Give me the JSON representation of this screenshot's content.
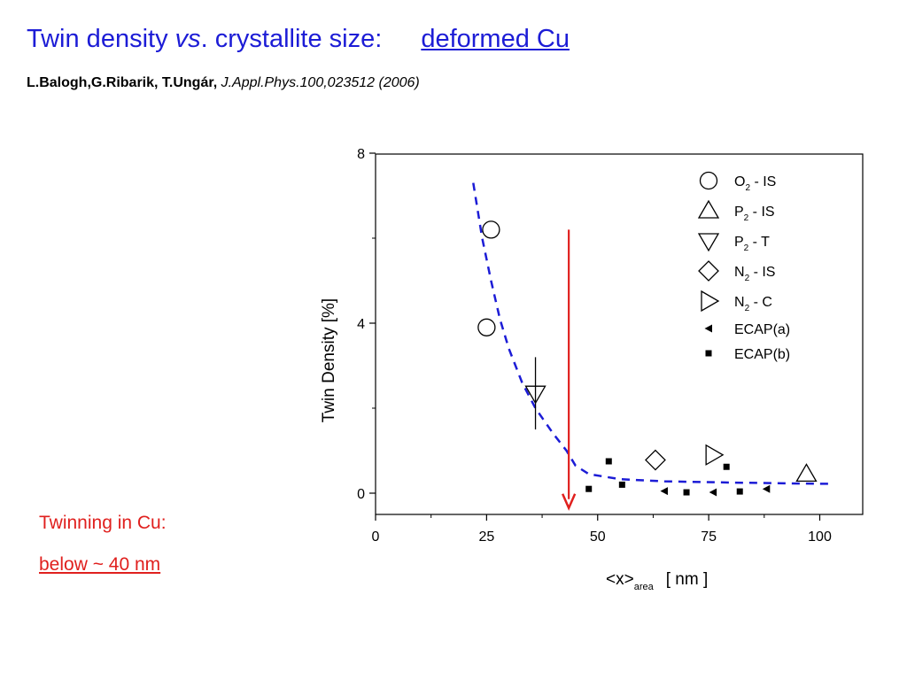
{
  "slide": {
    "title_part1": "Twin density ",
    "title_vs": "vs",
    "title_part2": ". crystallite size:",
    "title_link": "deformed Cu",
    "ref_authors": "L.Balogh,G.Ribarik, T.Ungár,",
    "ref_journal": "J.Appl.Phys.100,023512 (2006)",
    "note_line1": "Twinning in Cu:",
    "note_line2": "below ~ 40 nm",
    "colors": {
      "title": "#1c1cd6",
      "note": "#e0201e",
      "fit_curve": "#1c1cd6",
      "arrow": "#e0201e"
    }
  },
  "chart_data": {
    "type": "scatter",
    "xlabel_main": "<x>",
    "xlabel_sub": "area",
    "xlabel_unit": "[ nm ]",
    "ylabel": "Twin Density   [%]",
    "xlim": [
      0,
      110
    ],
    "ylim": [
      -0.5,
      8
    ],
    "x_ticks": [
      0,
      25,
      50,
      75,
      100
    ],
    "x_tick_labels": [
      "0",
      "25",
      "50",
      "75",
      "100"
    ],
    "y_ticks": [
      0,
      4,
      8
    ],
    "y_tick_labels": [
      "0",
      "4",
      "8"
    ],
    "legend_position": "top-right",
    "series": [
      {
        "name": "O2 - IS",
        "name_main": "O",
        "name_sub": "2",
        "name_rest": " - IS",
        "marker": "circle-open",
        "points": [
          {
            "x": 26,
            "y": 6.2
          },
          {
            "x": 25,
            "y": 3.9
          }
        ]
      },
      {
        "name": "P2 - IS",
        "name_main": "P",
        "name_sub": "2",
        "name_rest": " - IS",
        "marker": "triangle-up-open",
        "points": [
          {
            "x": 97,
            "y": 0.45
          }
        ]
      },
      {
        "name": "P2 - T",
        "name_main": "P",
        "name_sub": "2",
        "name_rest": " - T",
        "marker": "triangle-down-open",
        "points": [
          {
            "x": 36,
            "y": 2.35,
            "err_low": 1.5,
            "err_high": 3.2
          }
        ]
      },
      {
        "name": "N2 - IS",
        "name_main": "N",
        "name_sub": "2",
        "name_rest": " - IS",
        "marker": "diamond-open",
        "points": [
          {
            "x": 63,
            "y": 0.78
          }
        ]
      },
      {
        "name": "N2 - C",
        "name_main": "N",
        "name_sub": "2",
        "name_rest": " - C",
        "marker": "triangle-right-open",
        "points": [
          {
            "x": 76,
            "y": 0.9
          }
        ]
      },
      {
        "name": "ECAP(a)",
        "name_main": "ECAP(a)",
        "name_sub": "",
        "name_rest": "",
        "marker": "triangle-left-filled",
        "points": [
          {
            "x": 65,
            "y": 0.05
          },
          {
            "x": 76,
            "y": 0.02
          },
          {
            "x": 88,
            "y": 0.1
          }
        ]
      },
      {
        "name": "ECAP(b)",
        "name_main": "ECAP(b)",
        "name_sub": "",
        "name_rest": "",
        "marker": "square-filled",
        "points": [
          {
            "x": 48,
            "y": 0.1
          },
          {
            "x": 52.5,
            "y": 0.75
          },
          {
            "x": 55.5,
            "y": 0.2
          },
          {
            "x": 70,
            "y": 0.02
          },
          {
            "x": 79,
            "y": 0.62
          },
          {
            "x": 82,
            "y": 0.04
          }
        ]
      }
    ],
    "fit_curve": {
      "style": "dashed",
      "points": [
        {
          "x": 22,
          "y": 7.3
        },
        {
          "x": 24,
          "y": 6.0
        },
        {
          "x": 26,
          "y": 5.0
        },
        {
          "x": 28,
          "y": 4.1
        },
        {
          "x": 30,
          "y": 3.4
        },
        {
          "x": 33,
          "y": 2.6
        },
        {
          "x": 36,
          "y": 2.0
        },
        {
          "x": 40,
          "y": 1.4
        },
        {
          "x": 43,
          "y": 1.0
        },
        {
          "x": 45,
          "y": 0.65
        },
        {
          "x": 48,
          "y": 0.45
        },
        {
          "x": 55,
          "y": 0.33
        },
        {
          "x": 65,
          "y": 0.28
        },
        {
          "x": 80,
          "y": 0.25
        },
        {
          "x": 100,
          "y": 0.22
        },
        {
          "x": 102,
          "y": 0.22
        }
      ]
    },
    "annotation_arrow": {
      "x": 43.5,
      "y_from": 6.2,
      "y_to": -0.35
    }
  }
}
